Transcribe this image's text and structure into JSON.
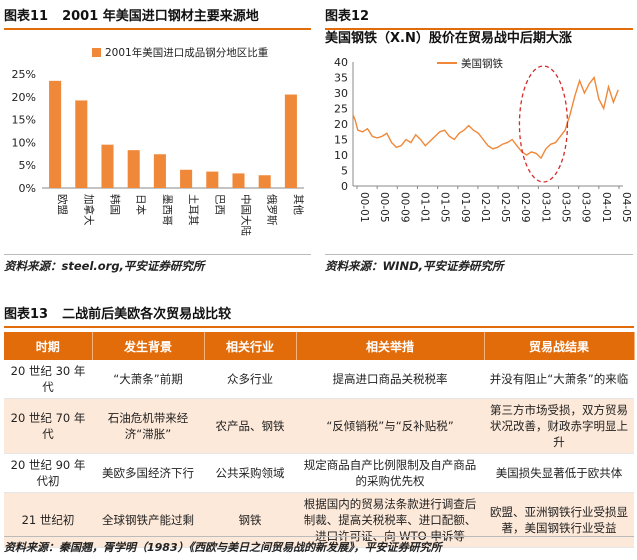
{
  "fig11": {
    "label": "图表11",
    "title": "2001 年美国进口钢材主要来源地",
    "source": "资料来源：steel.org,平安证券研究所"
  },
  "fig12": {
    "label": "图表12",
    "title": "美国钢铁（X.N）股价在贸易战中后期大涨",
    "source": "资料来源：WIND,平安证券研究所"
  },
  "fig13": {
    "label": "图表13",
    "title": "二战前后美欧各次贸易战比较",
    "source": "资料来源：秦国翘，胥学明（1983）《西欧与美日之间贸易战的新发展》，平安证券研究所",
    "headers": [
      "时期",
      "发生背景",
      "相关行业",
      "相关举措",
      "贸易战结果"
    ],
    "rows": [
      [
        "20 世纪 30 年代",
        "“大萧条”前期",
        "众多行业",
        "提高进口商品关税税率",
        "并没有阻止“大萧条”的来临"
      ],
      [
        "20 世纪 70 年代",
        "石油危机带来经济“滞胀”",
        "农产品、钢铁",
        "“反倾销税”与“反补贴税”",
        "第三方市场受损，双方贸易状况改善，财政赤字明显上升"
      ],
      [
        "20 世纪 90 年代初",
        "美欧多国经济下行",
        "公共采购领域",
        "规定商品自产比例限制及自产商品的采购优先权",
        "美国损失显著低于欧共体"
      ],
      [
        "21 世纪初",
        "全球钢铁产能过剩",
        "钢铁",
        "根据国内的贸易法条款进行调查后制裁、提高关税税率、进口配额、进口许可证、向 WTO 申诉等",
        "欧盟、亚洲钢铁行业受损显著，美国钢铁行业受益"
      ]
    ]
  },
  "chart_data": [
    {
      "type": "bar",
      "title": "",
      "legend": [
        "2001年美国进口成品钢分地区比重"
      ],
      "legend_position": "top",
      "categories": [
        "欧盟",
        "加拿大",
        "韩国",
        "日本",
        "墨西哥",
        "土耳其",
        "巴西",
        "中国大陆",
        "俄罗斯",
        "其他"
      ],
      "series": [
        {
          "name": "2001年美国进口成品钢分地区比重",
          "values": [
            23.5,
            19.2,
            9.5,
            8.3,
            7.4,
            4.0,
            3.6,
            3.2,
            2.8,
            20.5
          ]
        }
      ],
      "ylim": [
        0,
        25
      ],
      "yticks": [
        "0%",
        "5%",
        "10%",
        "15%",
        "20%",
        "25%"
      ],
      "color": "#f0883a",
      "grid": false
    },
    {
      "type": "line",
      "title": "",
      "legend": [
        "美国钢铁"
      ],
      "legend_position": "top-left",
      "ylim": [
        0,
        40
      ],
      "yticks": [
        0,
        5,
        10,
        15,
        20,
        25,
        30,
        35,
        40
      ],
      "xticks": [
        "00-01",
        "00-05",
        "00-09",
        "01-01",
        "01-05",
        "01-09",
        "02-01",
        "02-05",
        "02-09",
        "03-01",
        "03-05",
        "03-09",
        "04-01",
        "04-05"
      ],
      "series": [
        {
          "name": "美国钢铁",
          "points": [
            [
              0,
              23
            ],
            [
              0.5,
              21
            ],
            [
              1,
              18
            ],
            [
              2,
              17.5
            ],
            [
              3,
              18.5
            ],
            [
              4,
              16
            ],
            [
              5,
              15.5
            ],
            [
              6,
              16
            ],
            [
              7,
              17
            ],
            [
              8,
              14
            ],
            [
              9,
              12.5
            ],
            [
              10,
              13
            ],
            [
              11,
              15
            ],
            [
              12,
              14
            ],
            [
              13,
              16.5
            ],
            [
              14,
              15
            ],
            [
              15,
              13
            ],
            [
              16,
              14.5
            ],
            [
              17,
              16
            ],
            [
              18,
              17.5
            ],
            [
              19,
              18
            ],
            [
              20,
              16
            ],
            [
              21,
              15
            ],
            [
              22,
              17
            ],
            [
              23,
              18
            ],
            [
              24,
              19.5
            ],
            [
              25,
              18
            ],
            [
              26,
              17
            ],
            [
              27,
              15
            ],
            [
              28,
              13
            ],
            [
              29,
              12
            ],
            [
              30,
              12.5
            ],
            [
              31,
              13.5
            ],
            [
              32,
              14
            ],
            [
              33,
              15
            ],
            [
              34,
              13
            ],
            [
              35,
              11
            ],
            [
              36,
              10
            ],
            [
              37,
              11
            ],
            [
              38,
              10.5
            ],
            [
              39,
              9
            ],
            [
              40,
              12
            ],
            [
              41,
              13.5
            ],
            [
              42,
              14
            ],
            [
              43,
              16
            ],
            [
              44,
              18
            ],
            [
              45,
              23
            ],
            [
              46,
              29
            ],
            [
              47,
              34
            ],
            [
              48,
              30
            ],
            [
              49,
              33
            ],
            [
              50,
              35
            ],
            [
              51,
              28
            ],
            [
              52,
              25
            ],
            [
              53,
              32
            ],
            [
              54,
              27
            ],
            [
              55,
              31
            ]
          ]
        }
      ],
      "x_range": [
        0,
        56
      ],
      "annotation": "dashed ellipse around 2003 rebound",
      "color": "#f0883a",
      "grid": false
    }
  ]
}
